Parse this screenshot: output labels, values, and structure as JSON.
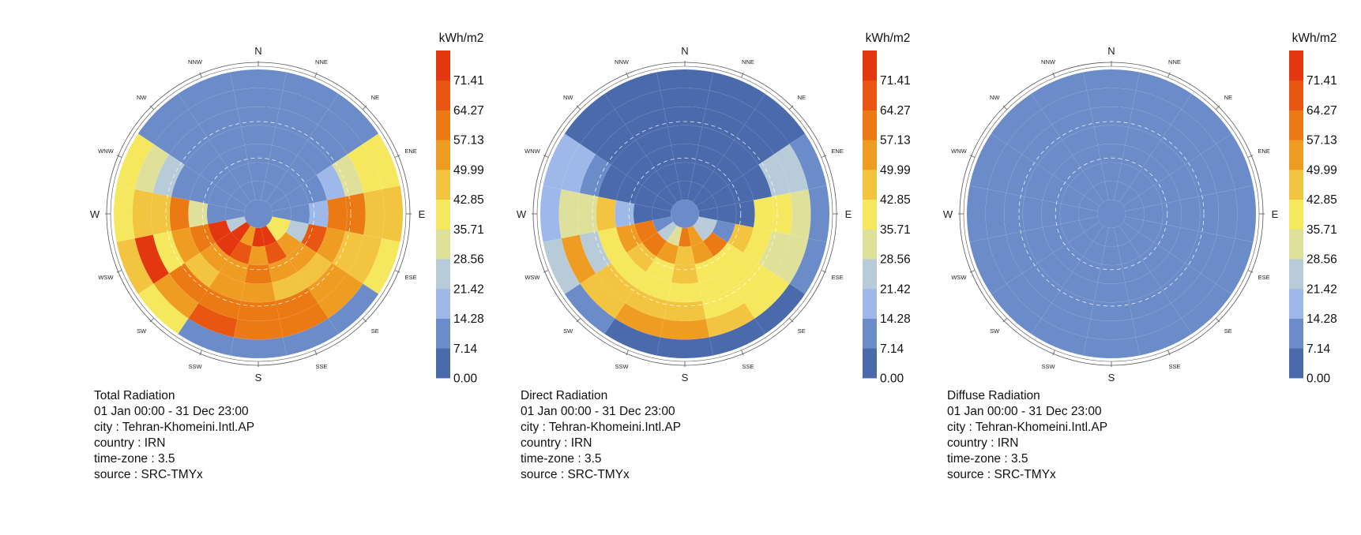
{
  "colors": {
    "scale": [
      "#4a6aac",
      "#6b8cc8",
      "#9fb8ea",
      "#b8cbd9",
      "#dfe09a",
      "#f6e85e",
      "#f2c440",
      "#ef9c22",
      "#eb7a14",
      "#e85612",
      "#e3380f"
    ],
    "ring": "#555555",
    "text": "#111111"
  },
  "compass": {
    "labels": [
      "N",
      "NNE",
      "NE",
      "ENE",
      "E",
      "ESE",
      "SE",
      "SSE",
      "S",
      "SSW",
      "SW",
      "WSW",
      "W",
      "WNW",
      "NW",
      "NNW"
    ]
  },
  "chart_data": [
    {
      "type": "heatmap",
      "subtype": "radiation-rose",
      "title": "Total Radiation",
      "period": "01 Jan 00:00 - 31 Dec 23:00",
      "city": "city : Tehran-Khomeini.Intl.AP",
      "country": "country : IRN",
      "timezone": "time-zone : 3.5",
      "source": "source : SRC-TMYx",
      "legend": {
        "unit": "kWh/m2",
        "ticks": [
          "0.00",
          "7.14",
          "14.28",
          "21.42",
          "28.56",
          "35.71",
          "42.85",
          "49.99",
          "57.13",
          "64.27",
          "71.41"
        ],
        "min": 0,
        "max": 78.55
      },
      "rings": [
        [
          10,
          10,
          10,
          10,
          12,
          40,
          38,
          76,
          76,
          50,
          76,
          24,
          10,
          10,
          10,
          10
        ],
        [
          10,
          10,
          10,
          10,
          10,
          24,
          52,
          71,
          55,
          65,
          72,
          75,
          10,
          10,
          10,
          10
        ],
        [
          10,
          10,
          10,
          10,
          18,
          66,
          55,
          54,
          58,
          50,
          50,
          64,
          35,
          10,
          10,
          10
        ],
        [
          10,
          10,
          10,
          15,
          60,
          54,
          44,
          47,
          52,
          54,
          49,
          50,
          64,
          10,
          10,
          10
        ],
        [
          10,
          10,
          10,
          35,
          58,
          45,
          56,
          60,
          61,
          59,
          58,
          40,
          48,
          24,
          10,
          10
        ],
        [
          10,
          10,
          12,
          38,
          46,
          44,
          54,
          60,
          58,
          66,
          52,
          72,
          46,
          32,
          12,
          10
        ],
        [
          8,
          8,
          10,
          42,
          44,
          38,
          12,
          14,
          12,
          12,
          36,
          44,
          40,
          38,
          10,
          8
        ]
      ]
    },
    {
      "type": "heatmap",
      "subtype": "radiation-rose",
      "title": "Direct Radiation",
      "period": "01 Jan 00:00 - 31 Dec 23:00",
      "city": "city : Tehran-Khomeini.Intl.AP",
      "country": "country : IRN",
      "timezone": "time-zone : 3.5",
      "source": "source : SRC-TMYx",
      "legend": {
        "unit": "kWh/m2",
        "ticks": [
          "0.00",
          "7.14",
          "14.28",
          "21.42",
          "28.56",
          "35.71",
          "42.85",
          "49.99",
          "57.13",
          "64.27",
          "71.41"
        ],
        "min": 0,
        "max": 78.55
      },
      "rings": [
        [
          2,
          2,
          2,
          2,
          4,
          24,
          28,
          52,
          60,
          32,
          26,
          10,
          2,
          2,
          2,
          2
        ],
        [
          2,
          2,
          2,
          2,
          2,
          10,
          60,
          54,
          48,
          52,
          58,
          64,
          2,
          2,
          2,
          2
        ],
        [
          2,
          2,
          2,
          2,
          6,
          46,
          42,
          40,
          46,
          42,
          46,
          52,
          18,
          2,
          2,
          2
        ],
        [
          2,
          2,
          2,
          6,
          38,
          40,
          36,
          40,
          40,
          40,
          38,
          40,
          46,
          4,
          2,
          2
        ],
        [
          2,
          2,
          2,
          22,
          38,
          30,
          38,
          42,
          44,
          46,
          44,
          28,
          32,
          10,
          2,
          2
        ],
        [
          2,
          2,
          4,
          26,
          32,
          30,
          40,
          48,
          54,
          54,
          44,
          56,
          34,
          18,
          4,
          2
        ],
        [
          1,
          1,
          2,
          12,
          14,
          12,
          2,
          2,
          2,
          2,
          12,
          22,
          20,
          18,
          4,
          1
        ]
      ]
    },
    {
      "type": "heatmap",
      "subtype": "radiation-rose",
      "title": "Diffuse Radiation",
      "period": "01 Jan 00:00 - 31 Dec 23:00",
      "city": "city : Tehran-Khomeini.Intl.AP",
      "country": "country : IRN",
      "timezone": "time-zone : 3.5",
      "source": "source : SRC-TMYx",
      "legend": {
        "unit": "kWh/m2",
        "ticks": [
          "0.00",
          "7.14",
          "14.28",
          "21.42",
          "28.56",
          "35.71",
          "42.85",
          "49.99",
          "57.13",
          "64.27",
          "71.41"
        ],
        "min": 0,
        "max": 78.55
      },
      "rings": [
        [
          8,
          8,
          8,
          8,
          8,
          9,
          9,
          9,
          9,
          9,
          9,
          9,
          8,
          8,
          8,
          8
        ],
        [
          8,
          8,
          8,
          8,
          8,
          9,
          9,
          9,
          9,
          9,
          9,
          9,
          8,
          8,
          8,
          8
        ],
        [
          8,
          8,
          8,
          8,
          8,
          9,
          9,
          9,
          9,
          9,
          9,
          9,
          8,
          8,
          8,
          8
        ],
        [
          8,
          8,
          8,
          8,
          9,
          9,
          9,
          9,
          9,
          9,
          9,
          9,
          9,
          8,
          8,
          8
        ],
        [
          8,
          8,
          8,
          9,
          9,
          9,
          9,
          9,
          9,
          9,
          9,
          9,
          9,
          9,
          8,
          8
        ],
        [
          8,
          8,
          9,
          9,
          9,
          9,
          9,
          9,
          9,
          9,
          9,
          9,
          9,
          9,
          9,
          8
        ],
        [
          9,
          9,
          9,
          9,
          9,
          9,
          9,
          9,
          9,
          9,
          9,
          9,
          9,
          9,
          9,
          9
        ]
      ]
    }
  ]
}
